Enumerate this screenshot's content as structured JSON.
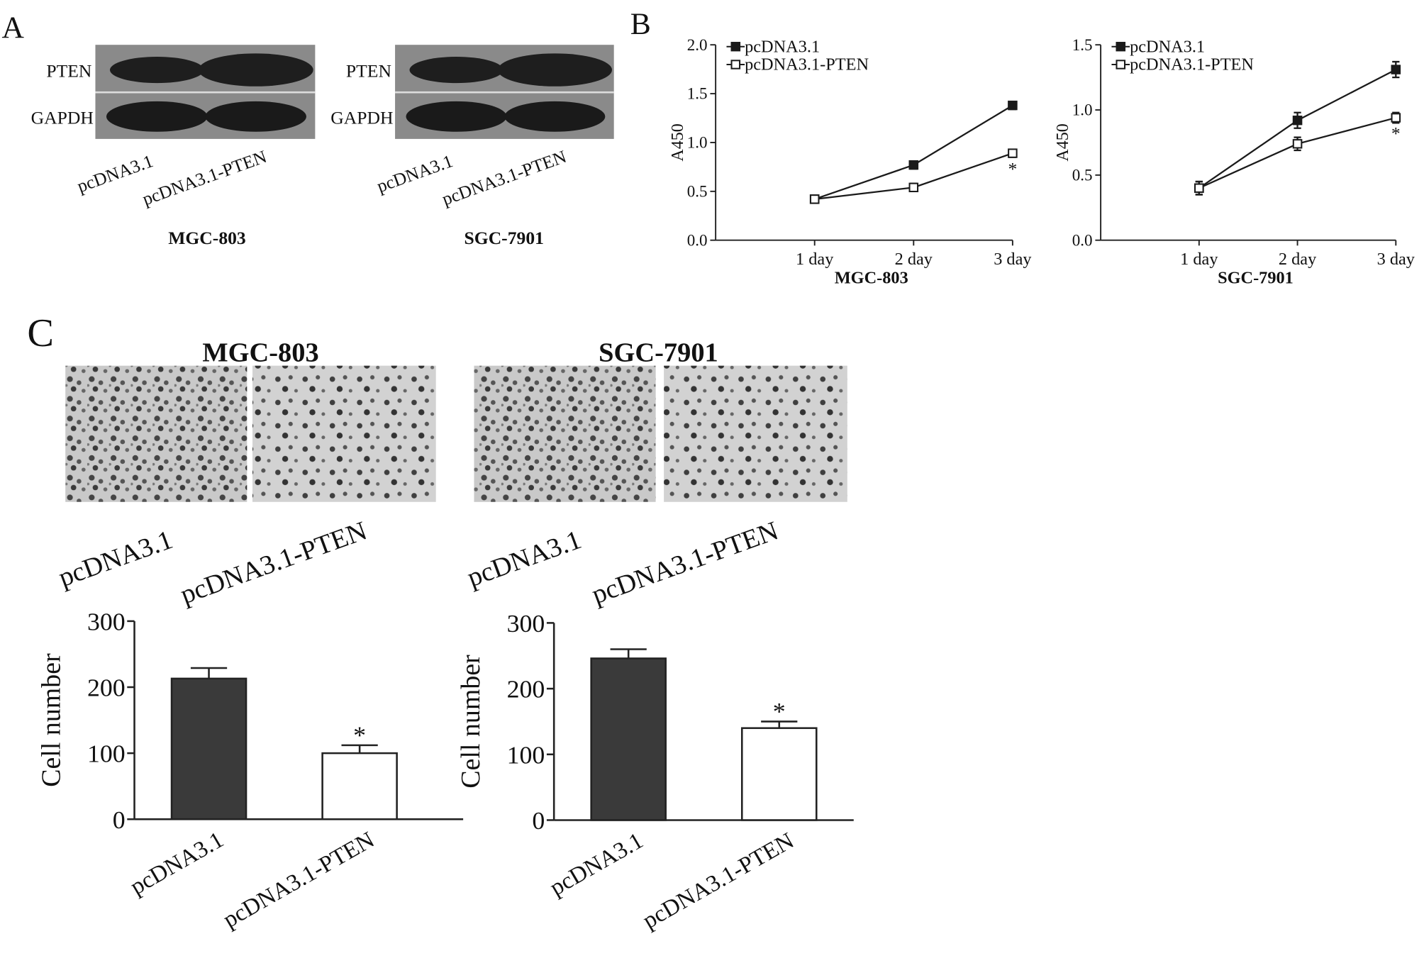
{
  "figure": {
    "panel_labels": [
      "A",
      "B",
      "C"
    ],
    "blots": [
      {
        "cell_line": "MGC-803",
        "rows": [
          "PTEN",
          "GAPDH"
        ],
        "lanes": [
          "pcDNA3.1",
          "pcDNA3.1-PTEN"
        ]
      },
      {
        "cell_line": "SGC-7901",
        "rows": [
          "PTEN",
          "GAPDH"
        ],
        "lanes": [
          "pcDNA3.1",
          "pcDNA3.1-PTEN"
        ]
      }
    ],
    "micrographs": [
      {
        "lanes": [
          "pcDNA3.1",
          "pcDNA3.1-PTEN"
        ]
      },
      {
        "lanes": [
          "pcDNA3.1",
          "pcDNA3.1-PTEN"
        ]
      }
    ]
  },
  "chart_data": [
    {
      "type": "line",
      "xlabel": "MGC-803",
      "ylabel": "A450",
      "categories": [
        "1 day",
        "2 day",
        "3 day"
      ],
      "series": [
        {
          "name": "pcDNA3.1",
          "color": "#1a1a1a",
          "filled": true,
          "values": [
            0.42,
            0.77,
            1.38
          ],
          "errors": [
            0.03,
            0.04,
            0.04
          ]
        },
        {
          "name": "pcDNA3.1-PTEN",
          "color": "#1a1a1a",
          "filled": false,
          "values": [
            0.42,
            0.54,
            0.89
          ],
          "errors": [
            0.03,
            0.04,
            0.04
          ]
        }
      ],
      "ylim": [
        0,
        2
      ],
      "yticks": [
        {
          "value": 0,
          "label": "0.0"
        },
        {
          "value": 0.5,
          "label": "0.5"
        },
        {
          "value": 1,
          "label": "1.0"
        },
        {
          "value": 1.5,
          "label": "1.5"
        },
        {
          "value": 2,
          "label": "2.0"
        }
      ],
      "annotations": [
        {
          "text": "*",
          "category": 2,
          "series": 1
        }
      ],
      "legend": "upper left"
    },
    {
      "type": "line",
      "xlabel": "SGC-7901",
      "ylabel": "A450",
      "categories": [
        "1 day",
        "2 day",
        "3 day"
      ],
      "series": [
        {
          "name": "pcDNA3.1",
          "color": "#1a1a1a",
          "filled": true,
          "values": [
            0.4,
            0.92,
            1.31
          ],
          "errors": [
            0.05,
            0.06,
            0.06
          ]
        },
        {
          "name": "pcDNA3.1-PTEN",
          "color": "#1a1a1a",
          "filled": false,
          "values": [
            0.4,
            0.74,
            0.94
          ],
          "errors": [
            0.05,
            0.05,
            0.04
          ]
        }
      ],
      "ylim": [
        0,
        1.5
      ],
      "yticks": [
        {
          "value": 0,
          "label": "0.0"
        },
        {
          "value": 0.5,
          "label": "0.5"
        },
        {
          "value": 1,
          "label": "1.0"
        },
        {
          "value": 1.5,
          "label": "1.5"
        }
      ],
      "annotations": [
        {
          "text": "*",
          "category": 2,
          "series": 1
        }
      ],
      "legend": "upper left"
    },
    {
      "type": "bar",
      "title": "MGC-803",
      "ylabel": "Cell number",
      "categories": [
        "pcDNA3.1",
        "pcDNA3.1-PTEN"
      ],
      "values": [
        213,
        100
      ],
      "errors": [
        16,
        12
      ],
      "colors": [
        "#3a3a3a",
        "#ffffff"
      ],
      "ylim": [
        0,
        300
      ],
      "yticks": [
        0,
        100,
        200,
        300
      ],
      "annotations": [
        {
          "text": "*",
          "category": 1
        }
      ]
    },
    {
      "type": "bar",
      "title": "SGC-7901",
      "ylabel": "Cell number",
      "categories": [
        "pcDNA3.1",
        "pcDNA3.1-PTEN"
      ],
      "values": [
        246,
        140
      ],
      "errors": [
        14,
        10
      ],
      "colors": [
        "#3a3a3a",
        "#ffffff"
      ],
      "ylim": [
        0,
        300
      ],
      "yticks": [
        0,
        100,
        200,
        300
      ],
      "annotations": [
        {
          "text": "*",
          "category": 1
        }
      ]
    }
  ]
}
